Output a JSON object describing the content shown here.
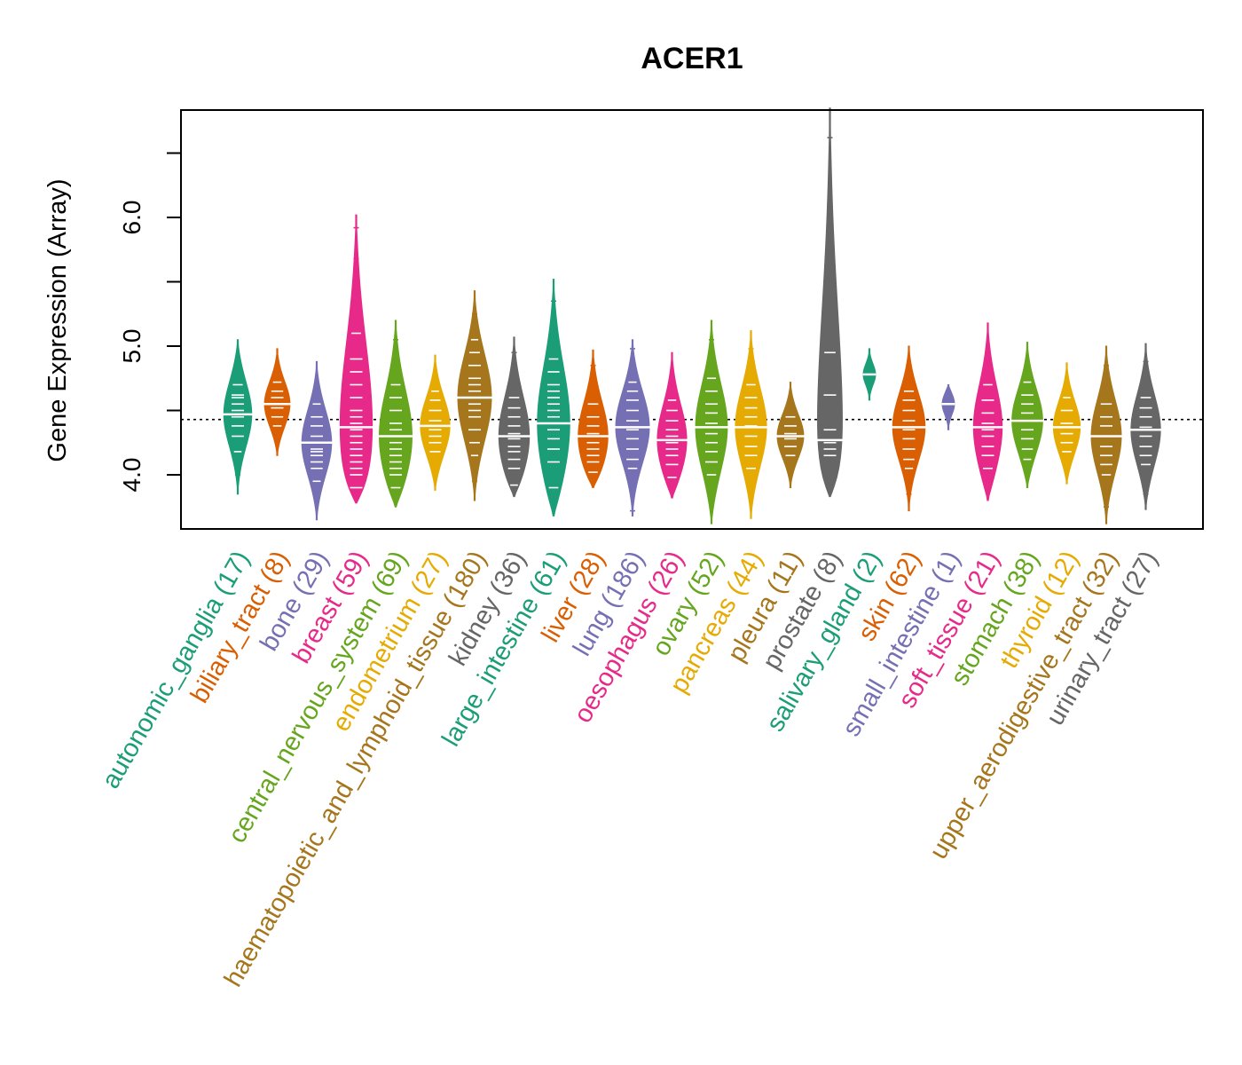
{
  "chart_data": {
    "type": "beanplot",
    "title": "ACER1",
    "xlabel": "",
    "ylabel": "Gene Expression (Array)",
    "ylim": [
      3.6,
      6.85
    ],
    "y_ticks": [
      4.0,
      4.5,
      5.0,
      5.5,
      6.0,
      6.5
    ],
    "y_tick_labels": [
      "4.0",
      "5.0",
      "6.0"
    ],
    "overall_median": 4.43,
    "categories": [
      {
        "name": "autonomic_ganglia",
        "n": 17,
        "label": "autonomic_ganglia (17)",
        "color": "#1b9e77",
        "min": 3.85,
        "max": 5.05,
        "median": 4.47,
        "points": [
          4.0,
          4.18,
          4.3,
          4.38,
          4.45,
          4.5,
          4.55,
          4.6,
          4.62,
          4.7,
          4.78,
          4.85
        ]
      },
      {
        "name": "biliary_tract",
        "n": 8,
        "label": "biliary_tract (8)",
        "color": "#d95f02",
        "min": 4.15,
        "max": 4.98,
        "median": 4.55,
        "points": [
          4.38,
          4.45,
          4.52,
          4.6,
          4.65,
          4.72
        ]
      },
      {
        "name": "bone",
        "n": 29,
        "label": "bone (29)",
        "color": "#7570b3",
        "min": 3.65,
        "max": 4.88,
        "median": 4.25,
        "points": [
          3.85,
          3.95,
          4.05,
          4.1,
          4.15,
          4.18,
          4.2,
          4.25,
          4.3,
          4.38,
          4.45,
          4.55,
          4.7
        ]
      },
      {
        "name": "breast",
        "n": 59,
        "label": "breast (59)",
        "color": "#e7298a",
        "min": 3.78,
        "max": 6.02,
        "median": 4.37,
        "points": [
          3.9,
          4.0,
          4.05,
          4.1,
          4.15,
          4.2,
          4.25,
          4.3,
          4.35,
          4.4,
          4.45,
          4.5,
          4.6,
          4.7,
          4.8,
          4.9,
          5.1,
          5.4,
          5.68,
          5.92
        ]
      },
      {
        "name": "central_nervous_system",
        "n": 69,
        "label": "central_nervous_system (69)",
        "color": "#66a61e",
        "min": 3.75,
        "max": 5.2,
        "median": 4.3,
        "points": [
          3.9,
          4.0,
          4.05,
          4.1,
          4.15,
          4.2,
          4.25,
          4.3,
          4.35,
          4.4,
          4.5,
          4.6,
          4.7,
          4.85,
          5.05
        ]
      },
      {
        "name": "endometrium",
        "n": 27,
        "label": "endometrium (27)",
        "color": "#e6ab02",
        "min": 3.88,
        "max": 4.93,
        "median": 4.38,
        "points": [
          4.0,
          4.1,
          4.18,
          4.25,
          4.3,
          4.35,
          4.42,
          4.5,
          4.58,
          4.65,
          4.75
        ]
      },
      {
        "name": "haematopoietic_and_lymphoid_tissue",
        "n": 180,
        "label": "haematopoietic_and_lymphoid_tissue (180)",
        "color": "#a6761d",
        "min": 3.8,
        "max": 5.43,
        "median": 4.6,
        "points": [
          3.95,
          4.05,
          4.15,
          4.25,
          4.35,
          4.45,
          4.5,
          4.55,
          4.6,
          4.65,
          4.7,
          4.75,
          4.85,
          4.95,
          5.05,
          5.15,
          5.25
        ]
      },
      {
        "name": "kidney",
        "n": 36,
        "label": "kidney (36)",
        "color": "#666666",
        "min": 3.83,
        "max": 5.07,
        "median": 4.3,
        "points": [
          3.92,
          4.05,
          4.12,
          4.18,
          4.22,
          4.28,
          4.32,
          4.38,
          4.45,
          4.52,
          4.6,
          4.72,
          4.85,
          4.95
        ]
      },
      {
        "name": "large_intestine",
        "n": 61,
        "label": "large_intestine (61)",
        "color": "#1b9e77",
        "min": 3.68,
        "max": 5.52,
        "median": 4.4,
        "points": [
          3.9,
          4.1,
          4.2,
          4.28,
          4.35,
          4.4,
          4.45,
          4.5,
          4.55,
          4.6,
          4.65,
          4.7,
          4.8,
          4.9,
          5.35
        ]
      },
      {
        "name": "liver",
        "n": 28,
        "label": "liver (28)",
        "color": "#d95f02",
        "min": 3.9,
        "max": 4.97,
        "median": 4.3,
        "points": [
          4.02,
          4.1,
          4.15,
          4.2,
          4.25,
          4.32,
          4.38,
          4.45,
          4.55,
          4.7,
          4.85
        ]
      },
      {
        "name": "lung",
        "n": 186,
        "label": "lung (186)",
        "color": "#7570b3",
        "min": 3.68,
        "max": 5.05,
        "median": 4.37,
        "points": [
          3.72,
          3.95,
          4.05,
          4.12,
          4.2,
          4.28,
          4.35,
          4.42,
          4.5,
          4.58,
          4.65,
          4.72,
          4.8,
          4.9,
          4.98
        ]
      },
      {
        "name": "oesophagus",
        "n": 26,
        "label": "oesophagus (26)",
        "color": "#e7298a",
        "min": 3.82,
        "max": 4.95,
        "median": 4.27,
        "points": [
          3.98,
          4.08,
          4.15,
          4.2,
          4.25,
          4.3,
          4.35,
          4.42,
          4.5,
          4.58,
          4.7
        ]
      },
      {
        "name": "ovary",
        "n": 52,
        "label": "ovary (52)",
        "color": "#66a61e",
        "min": 3.62,
        "max": 5.2,
        "median": 4.37,
        "points": [
          3.78,
          3.9,
          4.0,
          4.1,
          4.18,
          4.25,
          4.32,
          4.4,
          4.48,
          4.55,
          4.65,
          4.75,
          4.88,
          5.05
        ]
      },
      {
        "name": "pancreas",
        "n": 44,
        "label": "pancreas (44)",
        "color": "#e6ab02",
        "min": 3.66,
        "max": 5.12,
        "median": 4.37,
        "points": [
          3.85,
          3.95,
          4.05,
          4.15,
          4.22,
          4.3,
          4.38,
          4.45,
          4.52,
          4.6,
          4.7,
          4.85,
          4.98
        ]
      },
      {
        "name": "pleura",
        "n": 11,
        "label": "pleura (11)",
        "color": "#a6761d",
        "min": 3.9,
        "max": 4.72,
        "median": 4.3,
        "points": [
          4.15,
          4.22,
          4.28,
          4.32,
          4.38,
          4.45
        ]
      },
      {
        "name": "prostate",
        "n": 8,
        "label": "prostate (8)",
        "color": "#666666",
        "min": 3.83,
        "max": 6.85,
        "median": 4.27,
        "points": [
          4.15,
          4.2,
          4.25,
          4.35,
          4.62,
          4.95,
          6.62
        ]
      },
      {
        "name": "salivary_gland",
        "n": 2,
        "label": "salivary_gland (2)",
        "color": "#1b9e77",
        "min": 4.58,
        "max": 4.98,
        "median": 4.78,
        "points": [
          4.75,
          4.82
        ]
      },
      {
        "name": "skin",
        "n": 62,
        "label": "skin (62)",
        "color": "#d95f02",
        "min": 3.72,
        "max": 5.0,
        "median": 4.37,
        "points": [
          3.85,
          3.95,
          4.05,
          4.12,
          4.2,
          4.28,
          4.35,
          4.42,
          4.5,
          4.58,
          4.65,
          4.75
        ]
      },
      {
        "name": "small_intestine",
        "n": 1,
        "label": "small_intestine (1)",
        "color": "#7570b3",
        "min": 4.35,
        "max": 4.7,
        "median": 4.55,
        "points": [
          4.55
        ]
      },
      {
        "name": "soft_tissue",
        "n": 21,
        "label": "soft_tissue (21)",
        "color": "#e7298a",
        "min": 3.8,
        "max": 5.18,
        "median": 4.37,
        "points": [
          3.95,
          4.05,
          4.15,
          4.22,
          4.3,
          4.35,
          4.4,
          4.48,
          4.58,
          4.7,
          4.98
        ]
      },
      {
        "name": "stomach",
        "n": 38,
        "label": "stomach (38)",
        "color": "#66a61e",
        "min": 3.9,
        "max": 5.03,
        "median": 4.42,
        "points": [
          4.02,
          4.12,
          4.2,
          4.28,
          4.35,
          4.42,
          4.48,
          4.55,
          4.62,
          4.72,
          4.85
        ]
      },
      {
        "name": "thyroid",
        "n": 12,
        "label": "thyroid (12)",
        "color": "#e6ab02",
        "min": 3.93,
        "max": 4.87,
        "median": 4.37,
        "points": [
          4.08,
          4.18,
          4.25,
          4.32,
          4.4,
          4.5,
          4.6
        ]
      },
      {
        "name": "upper_aerodigestive_tract",
        "n": 32,
        "label": "upper_aerodigestive_tract (32)",
        "color": "#a6761d",
        "min": 3.62,
        "max": 5.0,
        "median": 4.3,
        "points": [
          3.75,
          3.9,
          4.0,
          4.08,
          4.15,
          4.22,
          4.3,
          4.38,
          4.45,
          4.55,
          4.7,
          4.85
        ]
      },
      {
        "name": "urinary_tract",
        "n": 27,
        "label": "urinary_tract (27)",
        "color": "#666666",
        "min": 3.73,
        "max": 5.02,
        "median": 4.35,
        "points": [
          3.85,
          3.98,
          4.08,
          4.15,
          4.22,
          4.3,
          4.37,
          4.45,
          4.52,
          4.6,
          4.88
        ]
      }
    ]
  }
}
